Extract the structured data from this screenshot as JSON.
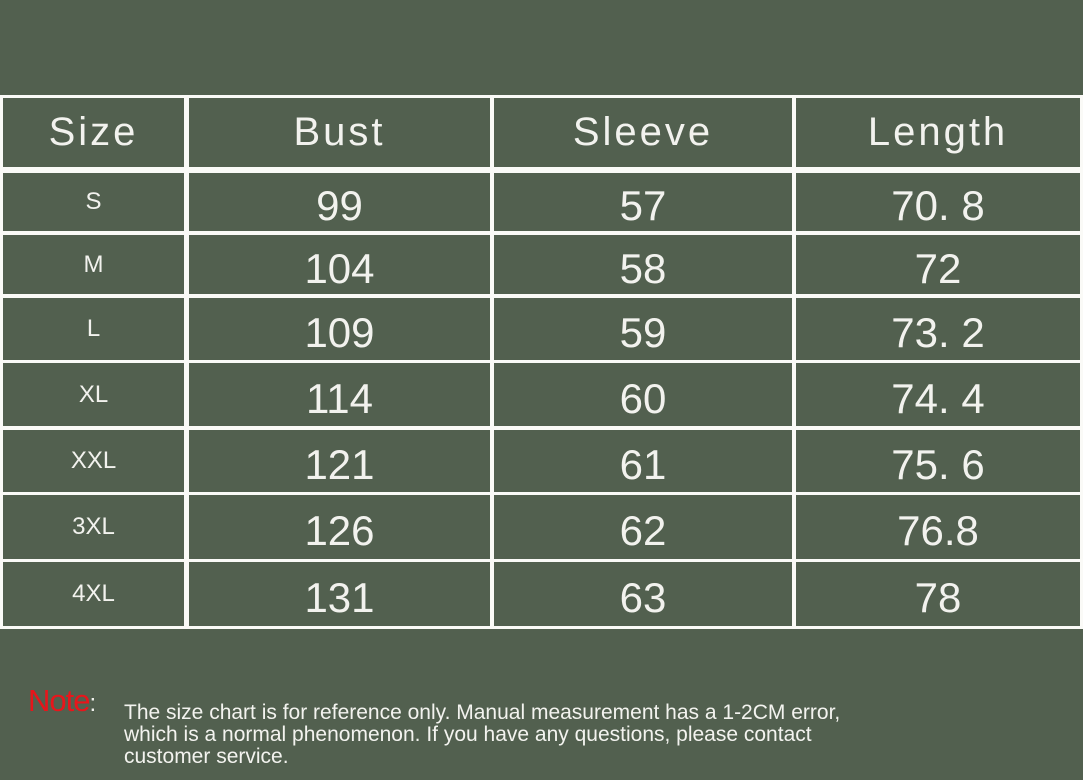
{
  "table": {
    "headers": [
      "Size",
      "Bust",
      "Sleeve",
      "Length"
    ],
    "rows": [
      [
        "S",
        "99",
        "57",
        "70. 8"
      ],
      [
        "M",
        "104",
        "58",
        "72"
      ],
      [
        "L",
        "109",
        "59",
        "73. 2"
      ],
      [
        "XL",
        "114",
        "60",
        "74. 4"
      ],
      [
        "XXL",
        "121",
        "61",
        "75. 6"
      ],
      [
        "3XL",
        "126",
        "62",
        "76.8"
      ],
      [
        "4XL",
        "131",
        "63",
        "78"
      ]
    ]
  },
  "note": {
    "label": "Note",
    "colon": ":",
    "text": "The size chart is for reference only. Manual measurement has a 1-2CM error, which is a normal phenomenon. If you have any questions, please contact customer service."
  },
  "colors": {
    "background": "#52604f",
    "grid_lines": "#fafaf7",
    "note_label": "#e8151b"
  }
}
